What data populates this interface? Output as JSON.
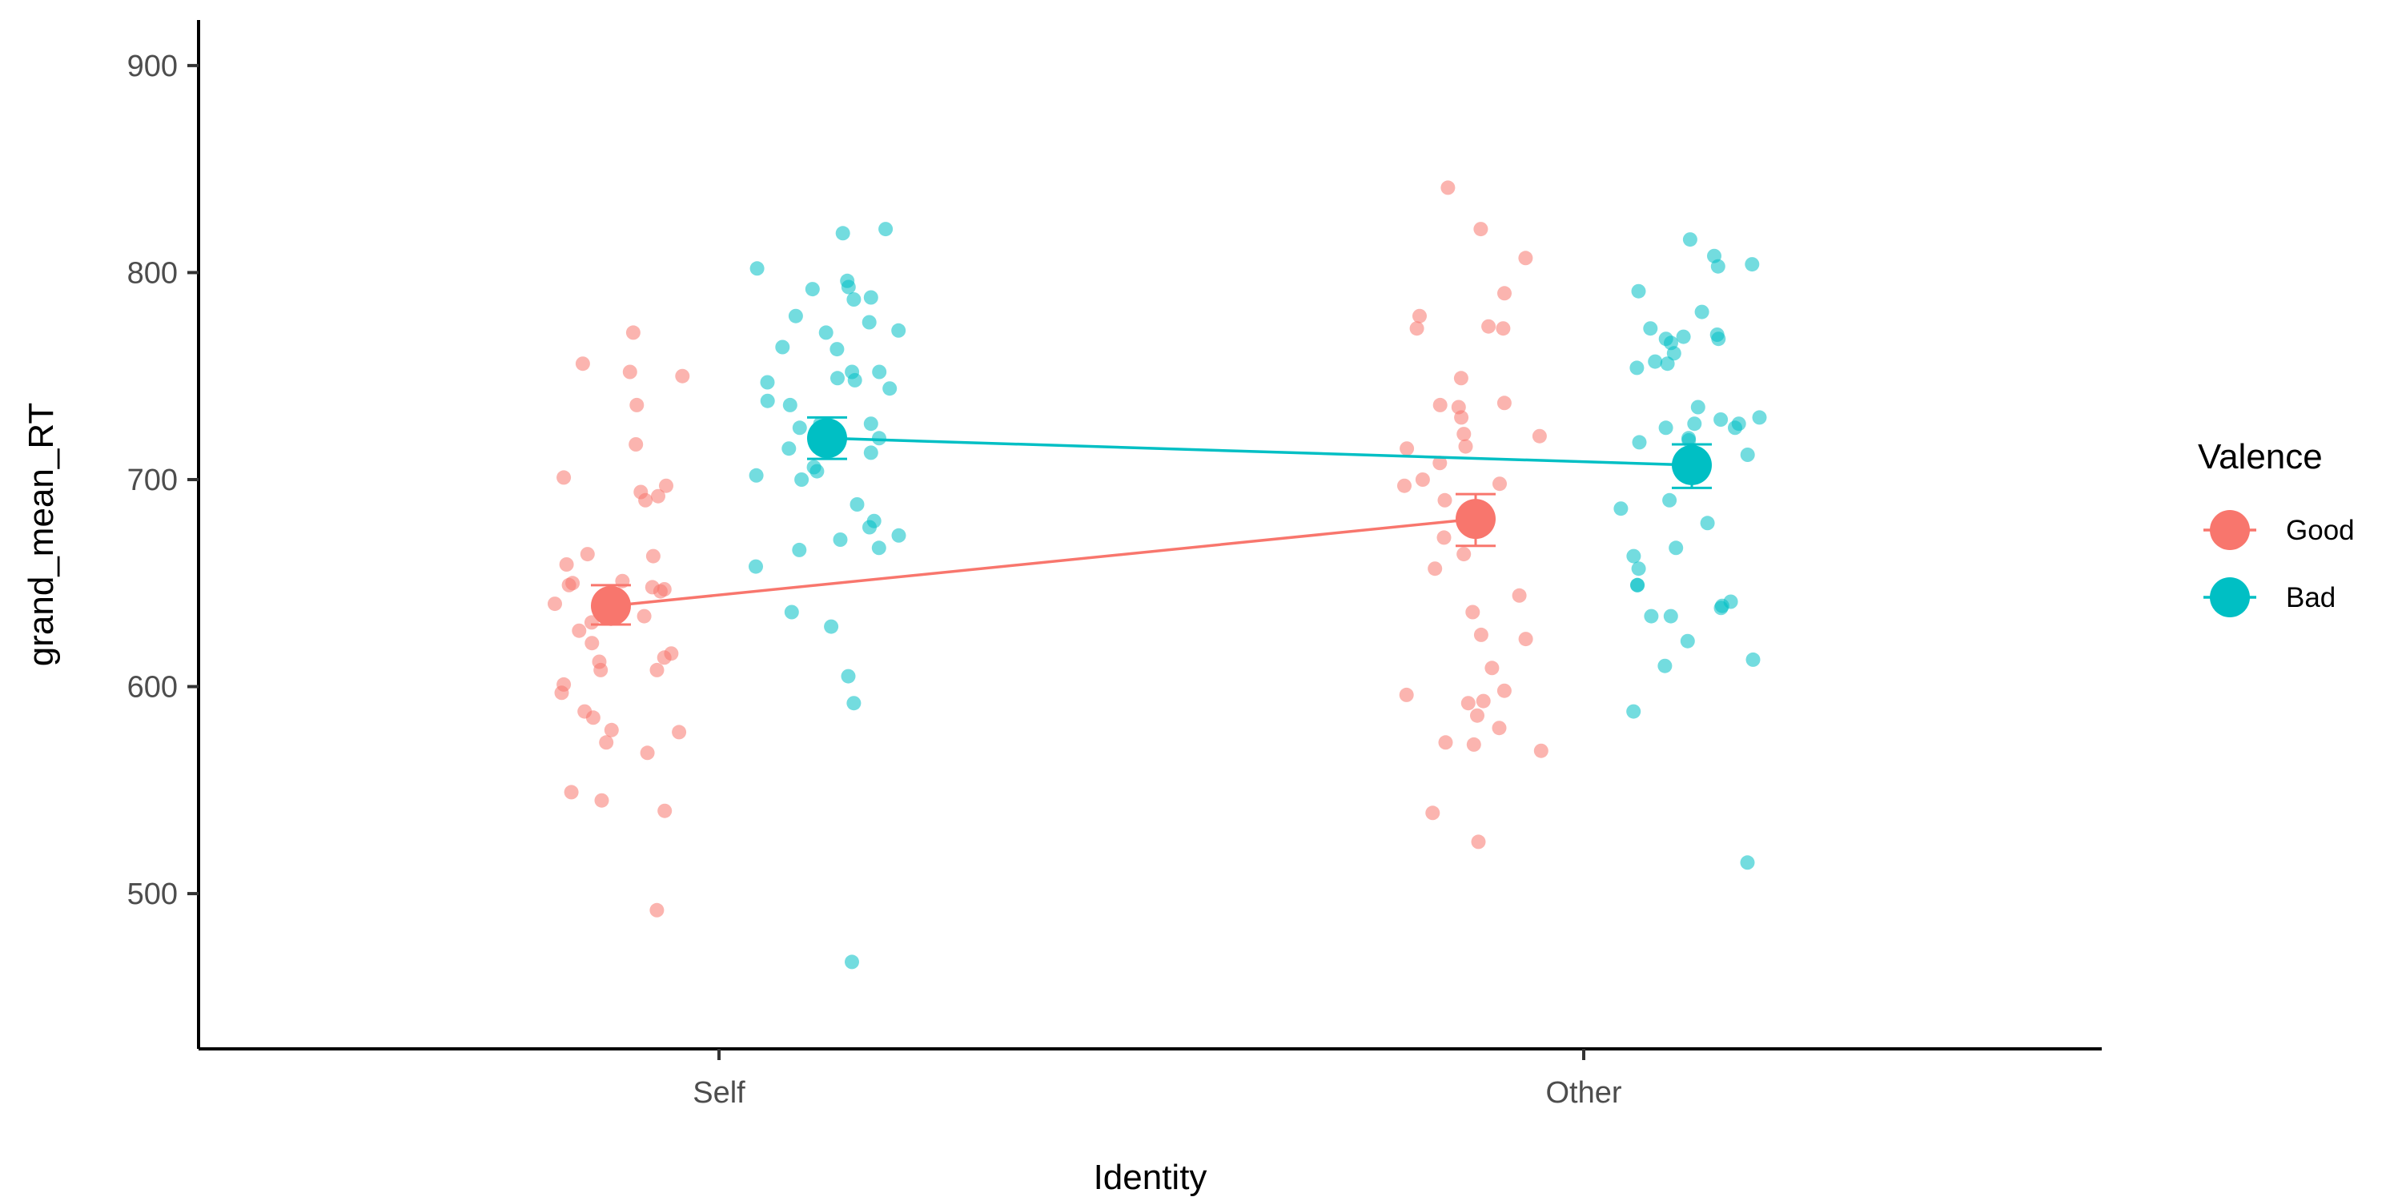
{
  "chart_data": {
    "type": "scatter",
    "title": "",
    "xlabel": "Identity",
    "ylabel": "grand_mean_RT",
    "categories": [
      "Self",
      "Other"
    ],
    "ylim": [
      425,
      922
    ],
    "yticks": [
      500,
      600,
      700,
      800,
      900
    ],
    "grid": false,
    "legend": {
      "title": "Valence",
      "placement": "right"
    },
    "series": [
      {
        "name": "Good",
        "color": "#F8766D",
        "means": [
          {
            "category": "Self",
            "mean": 639,
            "se_low": 630,
            "se_high": 649
          },
          {
            "category": "Other",
            "mean": 681,
            "se_low": 668,
            "se_high": 693
          }
        ],
        "points": [
          {
            "category": "Self",
            "values": [
              771,
              756,
              752,
              750,
              736,
              717,
              701,
              697,
              694,
              692,
              690,
              664,
              663,
              659,
              651,
              650,
              649,
              648,
              647,
              646,
              640,
              636,
              634,
              631,
              627,
              621,
              616,
              614,
              612,
              608,
              608,
              601,
              597,
              588,
              585,
              579,
              578,
              573,
              568,
              549,
              545,
              540,
              492
            ]
          },
          {
            "category": "Other",
            "values": [
              841,
              821,
              807,
              790,
              779,
              774,
              773,
              773,
              749,
              737,
              736,
              735,
              730,
              722,
              721,
              716,
              715,
              708,
              700,
              698,
              697,
              690,
              672,
              664,
              657,
              644,
              636,
              625,
              623,
              609,
              598,
              596,
              593,
              592,
              586,
              580,
              573,
              572,
              569,
              539,
              525
            ]
          }
        ]
      },
      {
        "name": "Bad",
        "color": "#00BFC4",
        "means": [
          {
            "category": "Self",
            "mean": 720,
            "se_low": 710,
            "se_high": 730
          },
          {
            "category": "Other",
            "mean": 707,
            "se_low": 696,
            "se_high": 717
          }
        ],
        "points": [
          {
            "category": "Self",
            "values": [
              821,
              819,
              802,
              796,
              793,
              792,
              788,
              787,
              779,
              776,
              772,
              771,
              764,
              763,
              752,
              752,
              749,
              748,
              747,
              744,
              738,
              736,
              727,
              727,
              725,
              720,
              715,
              713,
              706,
              704,
              702,
              700,
              688,
              680,
              677,
              673,
              671,
              667,
              666,
              658,
              636,
              629,
              605,
              592,
              467
            ]
          },
          {
            "category": "Other",
            "values": [
              816,
              808,
              804,
              803,
              791,
              781,
              773,
              770,
              769,
              768,
              768,
              766,
              761,
              757,
              756,
              754,
              735,
              730,
              729,
              727,
              727,
              725,
              725,
              720,
              719,
              718,
              712,
              690,
              686,
              679,
              667,
              663,
              657,
              649,
              649,
              641,
              639,
              638,
              634,
              634,
              622,
              613,
              610,
              588,
              515
            ]
          }
        ]
      }
    ]
  }
}
